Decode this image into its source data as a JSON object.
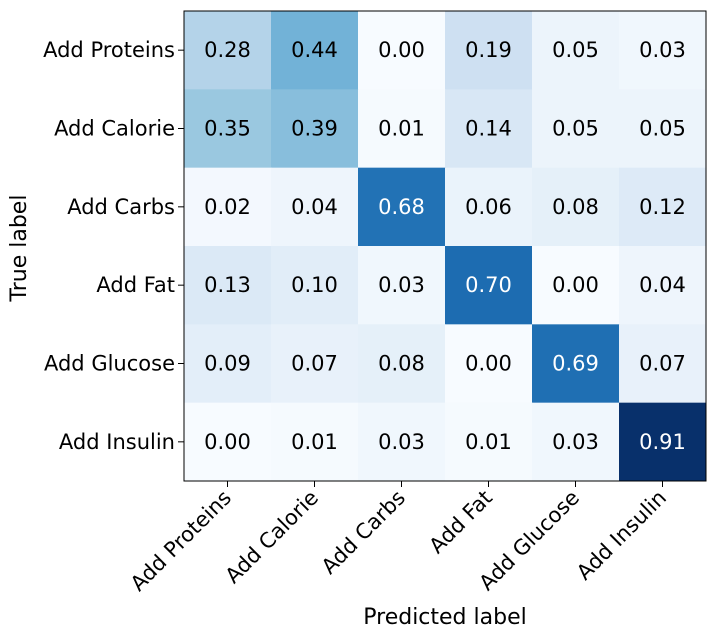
{
  "chart_data": {
    "type": "heatmap",
    "title": "",
    "xlabel": "Predicted label",
    "ylabel": "True label",
    "x_categories": [
      "Add Proteins",
      "Add Calorie",
      "Add Carbs",
      "Add Fat",
      "Add Glucose",
      "Add Insulin"
    ],
    "y_categories": [
      "Add Proteins",
      "Add Calorie",
      "Add Carbs",
      "Add Fat",
      "Add Glucose",
      "Add Insulin"
    ],
    "values": [
      [
        0.28,
        0.44,
        0.0,
        0.19,
        0.05,
        0.03
      ],
      [
        0.35,
        0.39,
        0.01,
        0.14,
        0.05,
        0.05
      ],
      [
        0.02,
        0.04,
        0.68,
        0.06,
        0.08,
        0.12
      ],
      [
        0.13,
        0.1,
        0.03,
        0.7,
        0.0,
        0.04
      ],
      [
        0.09,
        0.07,
        0.08,
        0.0,
        0.69,
        0.07
      ],
      [
        0.0,
        0.01,
        0.03,
        0.01,
        0.03,
        0.91
      ]
    ],
    "value_range": [
      0,
      0.91
    ],
    "colormap": "Blues",
    "grid": false
  }
}
